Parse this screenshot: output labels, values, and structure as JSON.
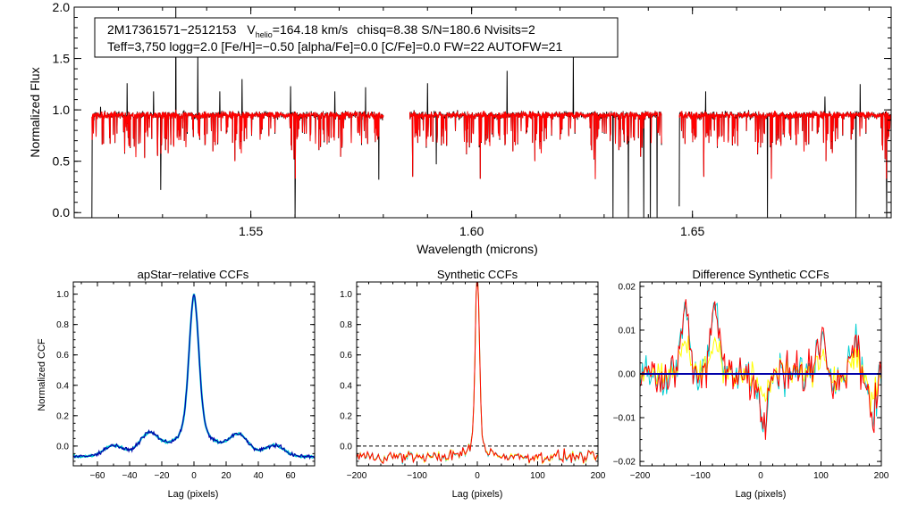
{
  "chart_data": [
    {
      "type": "line",
      "id": "spectrum",
      "info_line1": {
        "star_id": "2M17361571−2512153",
        "vhelio_prefix": "V",
        "vhelio_sub": "helio",
        "vhelio_value": "=164.18 km/s",
        "rest": "chisq=8.38  S/N=180.6  Nvisits=2"
      },
      "info_line2": "Teff=3,750 logg=2.0 [Fe/H]=−0.50 [alpha/Fe]=0.0 [C/Fe]=0.0 FW=22 AUTOFW=21",
      "xlabel": "Wavelength (microns)",
      "ylabel": "Normalized Flux",
      "xlim": [
        1.51,
        1.695
      ],
      "ylim": [
        -0.05,
        2.0
      ],
      "xticks": [
        1.55,
        1.6,
        1.65
      ],
      "xtick_labels": [
        "1.55",
        "1.60",
        "1.65"
      ],
      "yticks": [
        0.0,
        0.5,
        1.0,
        1.5,
        2.0
      ],
      "ytick_labels": [
        "0.0",
        "0.5",
        "1.0",
        "1.5",
        "2.0"
      ],
      "chips": [
        [
          1.514,
          1.58
        ],
        [
          1.586,
          1.643
        ],
        [
          1.647,
          1.696
        ]
      ],
      "continuum": 0.95,
      "emission_spikes": [
        {
          "x": 1.516,
          "y": 1.03
        },
        {
          "x": 1.522,
          "y": 1.26
        },
        {
          "x": 1.528,
          "y": 1.18
        },
        {
          "x": 1.533,
          "y": 2.0
        },
        {
          "x": 1.538,
          "y": 1.55
        },
        {
          "x": 1.543,
          "y": 1.18
        },
        {
          "x": 1.548,
          "y": 1.3
        },
        {
          "x": 1.559,
          "y": 1.23
        },
        {
          "x": 1.569,
          "y": 1.18
        },
        {
          "x": 1.576,
          "y": 1.22
        },
        {
          "x": 1.59,
          "y": 1.26
        },
        {
          "x": 1.608,
          "y": 1.38
        },
        {
          "x": 1.623,
          "y": 1.55
        },
        {
          "x": 1.632,
          "y": 1.28
        },
        {
          "x": 1.646,
          "y": 1.26
        },
        {
          "x": 1.653,
          "y": 1.18
        },
        {
          "x": 1.667,
          "y": 1.55
        },
        {
          "x": 1.68,
          "y": 1.13
        },
        {
          "x": 1.688,
          "y": 1.25
        },
        {
          "x": 1.694,
          "y": 1.13
        }
      ],
      "absorption_dips": [
        {
          "x": 1.514,
          "y": -0.05
        },
        {
          "x": 1.5296,
          "y": 0.22
        },
        {
          "x": 1.56,
          "y": -0.05
        },
        {
          "x": 1.579,
          "y": 0.32
        },
        {
          "x": 1.592,
          "y": 0.47
        },
        {
          "x": 1.632,
          "y": -0.05
        },
        {
          "x": 1.6355,
          "y": -0.05
        },
        {
          "x": 1.639,
          "y": -0.05
        },
        {
          "x": 1.6405,
          "y": -0.05
        },
        {
          "x": 1.642,
          "y": -0.05
        },
        {
          "x": 1.647,
          "y": 0.06
        },
        {
          "x": 1.667,
          "y": -0.05
        },
        {
          "x": 1.687,
          "y": -0.05
        },
        {
          "x": 1.694,
          "y": -0.05
        }
      ],
      "series": [
        {
          "name": "observed spectrum",
          "color": "#000000"
        },
        {
          "name": "best-fit synthetic spectrum",
          "color": "#ff0000"
        }
      ]
    },
    {
      "type": "line",
      "id": "apstar_ccf",
      "title": "apStar−relative CCFs",
      "xlabel": "Lag (pixels)",
      "ylabel": "Normalized CCF",
      "xlim": [
        -75,
        75
      ],
      "ylim": [
        -0.13,
        1.08
      ],
      "xticks": [
        -60,
        -40,
        -20,
        0,
        20,
        40,
        60
      ],
      "xtick_labels": [
        "−60",
        "−40",
        "−20",
        "0",
        "20",
        "40",
        "60"
      ],
      "yticks": [
        0.0,
        0.2,
        0.4,
        0.6,
        0.8,
        1.0
      ],
      "ytick_labels": [
        "0.0",
        "0.2",
        "0.4",
        "0.6",
        "0.8",
        "1.0"
      ],
      "profile": {
        "peak": 1.0,
        "core_width": 3.0,
        "wing_amp": 0.3,
        "wing_width": 12.0,
        "bumps": [
          {
            "x": -28,
            "y": 0.06
          },
          {
            "x": 28,
            "y": 0.05
          },
          {
            "x": -50,
            "y": 0.0
          },
          {
            "x": 50,
            "y": 0.0
          }
        ],
        "floor": -0.07
      },
      "series": [
        {
          "name": "CCF visit 1",
          "color": "#00ced1"
        },
        {
          "name": "CCF visit 2",
          "color": "#0000aa"
        }
      ]
    },
    {
      "type": "line",
      "id": "synthetic_ccf",
      "title": "Synthetic CCFs",
      "xlabel": "Lag (pixels)",
      "xlim": [
        -200,
        200
      ],
      "ylim": [
        -0.13,
        1.08
      ],
      "xticks": [
        -200,
        -100,
        0,
        100,
        200
      ],
      "xtick_labels": [
        "−200",
        "−100",
        "0",
        "100",
        "200"
      ],
      "yticks": [
        0.0,
        0.2,
        0.4,
        0.6,
        0.8,
        1.0
      ],
      "ytick_labels": [
        "0.0",
        "0.2",
        "0.4",
        "0.6",
        "0.8",
        "1.0"
      ],
      "zero_line": true,
      "series": [
        {
          "name": "synthetic CCF 1",
          "color": "#00ced1"
        },
        {
          "name": "synthetic CCF 2",
          "color": "#ffff00"
        },
        {
          "name": "synthetic CCF 3",
          "color": "#ff0000"
        }
      ]
    },
    {
      "type": "line",
      "id": "difference_ccf",
      "title": "Difference Synthetic CCFs",
      "xlabel": "Lag (pixels)",
      "xlim": [
        -200,
        200
      ],
      "ylim": [
        -0.021,
        0.021
      ],
      "xticks": [
        -200,
        -100,
        0,
        100,
        200
      ],
      "xtick_labels": [
        "−200",
        "−100",
        "0",
        "100",
        "200"
      ],
      "yticks": [
        -0.02,
        -0.01,
        0.0,
        0.01,
        0.02
      ],
      "ytick_labels": [
        "−0.02",
        "−0.01",
        "0.00",
        "0.01",
        "0.02"
      ],
      "zero_line": true,
      "series": [
        {
          "name": "difference 1",
          "color": "#00ced1"
        },
        {
          "name": "difference 2",
          "color": "#ffff00"
        },
        {
          "name": "difference 3",
          "color": "#ff0000"
        },
        {
          "name": "zero",
          "color": "#0000aa"
        }
      ]
    }
  ]
}
